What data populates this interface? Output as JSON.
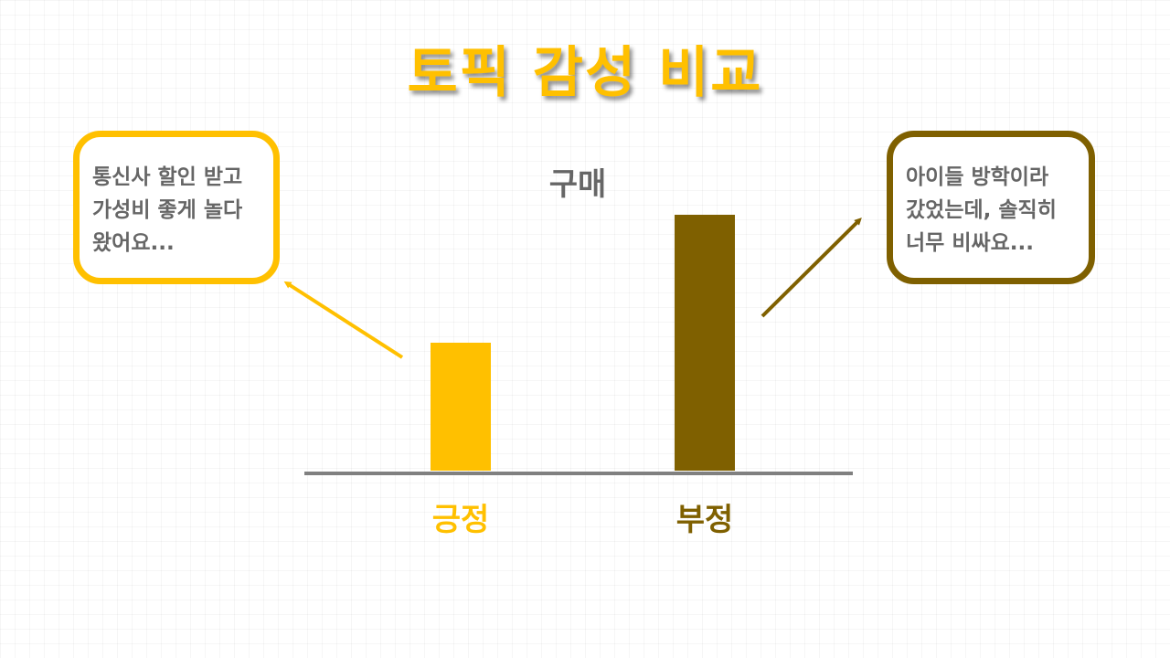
{
  "slide": {
    "title": "토픽 감성 비교"
  },
  "colors": {
    "positive": "#FFC000",
    "negative": "#7F6000",
    "title": "#FFC000",
    "text_gray": "#666666",
    "axis": "#808080"
  },
  "callouts": {
    "positive": "통신사 할인 받고\n가성비 좋게 놀다\n왔어요...",
    "negative": "아이들 방학이라\n갔었는데, 솔직히\n너무 비싸요..."
  },
  "chart_data": {
    "type": "bar",
    "title": "구매",
    "categories": [
      "긍정",
      "부정"
    ],
    "values": [
      5,
      10
    ],
    "ylim": [
      0,
      10.5
    ],
    "grid": false,
    "legend": "none"
  }
}
